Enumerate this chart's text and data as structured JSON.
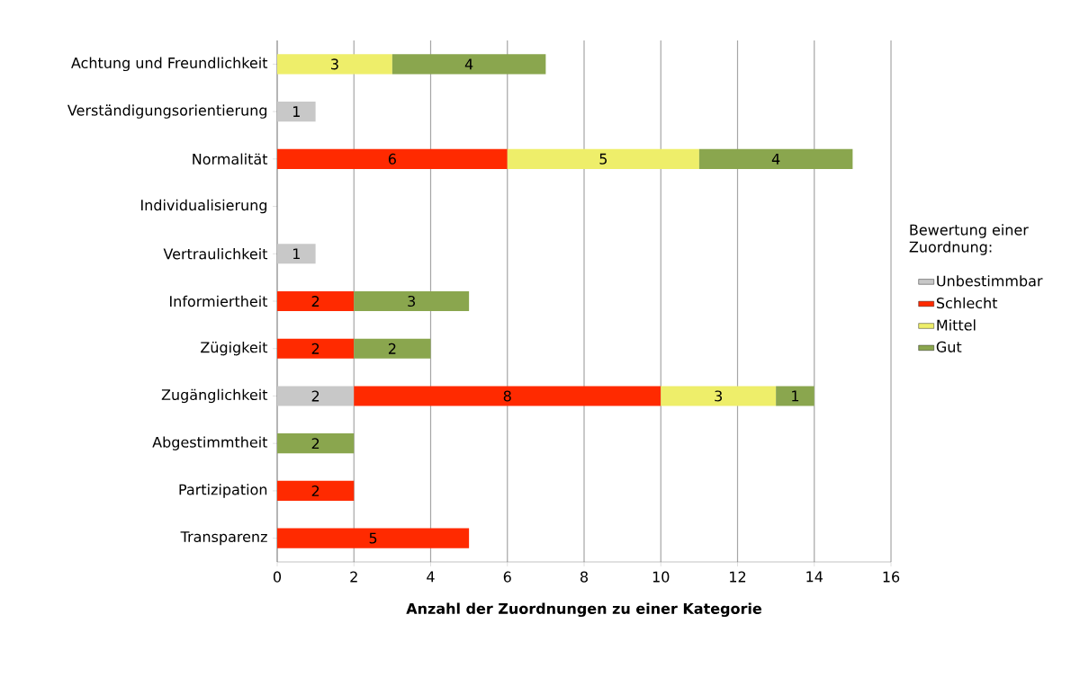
{
  "chart_data": {
    "type": "bar",
    "orientation": "horizontal",
    "stacked": true,
    "categories": [
      "Achtung und Freundlichkeit",
      "Verständigungsorientierung",
      "Normalität",
      "Individualisierung",
      "Vertraulichkeit",
      "Informiertheit",
      "Zügigkeit",
      "Zugänglichkeit",
      "Abgestimmtheit",
      "Partizipation",
      "Transparenz"
    ],
    "series": [
      {
        "name": "Unbestimmbar",
        "color": "#c8c8c8",
        "values": [
          null,
          1,
          null,
          null,
          1,
          null,
          null,
          2,
          null,
          null,
          null
        ]
      },
      {
        "name": "Schlecht",
        "color": "#ff2a00",
        "values": [
          null,
          null,
          6,
          null,
          null,
          2,
          2,
          8,
          null,
          2,
          5
        ]
      },
      {
        "name": "Mittel",
        "color": "#eeee6a",
        "values": [
          3,
          null,
          5,
          null,
          null,
          null,
          null,
          3,
          null,
          null,
          null
        ]
      },
      {
        "name": "Gut",
        "color": "#8aa64e",
        "values": [
          4,
          null,
          4,
          null,
          null,
          3,
          2,
          1,
          2,
          null,
          null
        ]
      }
    ],
    "xlim": [
      0,
      16
    ],
    "xticks": [
      0,
      2,
      4,
      6,
      8,
      10,
      12,
      14,
      16
    ],
    "xlabel": "Anzahl der Zuordnungen zu einer Kategorie",
    "legend_title": "Bewertung einer Zuordnung:",
    "legend": "right",
    "grid": "x",
    "data_labels": true
  }
}
